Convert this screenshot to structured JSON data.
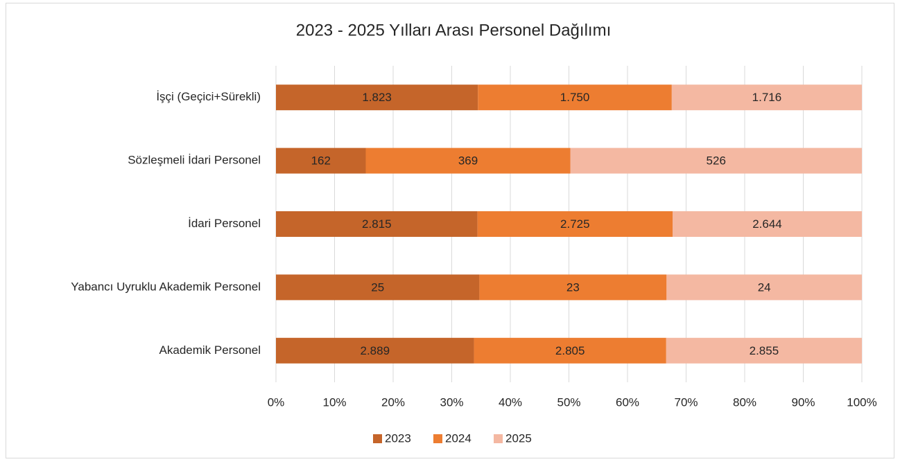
{
  "chart_data": {
    "type": "bar100h",
    "title": "2023 - 2025 Yılları Arası Personel Dağılımı",
    "categories": [
      "İşçi (Geçici+Sürekli)",
      "Sözleşmeli İdari Personel",
      "İdari Personel",
      "Yabancı Uyruklu Akademik Personel",
      "Akademik Personel"
    ],
    "series": [
      {
        "name": "2023",
        "color": "#c5652a",
        "values": [
          1823,
          162,
          2815,
          25,
          2889
        ],
        "value_labels": [
          "1.823",
          "162",
          "2.815",
          "25",
          "2.889"
        ]
      },
      {
        "name": "2024",
        "color": "#ed7d31",
        "values": [
          1750,
          369,
          2725,
          23,
          2805
        ],
        "value_labels": [
          "1.750",
          "369",
          "2.725",
          "23",
          "2.805"
        ]
      },
      {
        "name": "2025",
        "color": "#f4b8a2",
        "values": [
          1716,
          526,
          2644,
          24,
          2855
        ],
        "value_labels": [
          "1.716",
          "526",
          "2.644",
          "24",
          "2.855"
        ]
      }
    ],
    "xlim": [
      0,
      100
    ],
    "xticks": [
      {
        "value": 0,
        "label": "0%"
      },
      {
        "value": 10,
        "label": "10%"
      },
      {
        "value": 20,
        "label": "20%"
      },
      {
        "value": 30,
        "label": "30%"
      },
      {
        "value": 40,
        "label": "40%"
      },
      {
        "value": 50,
        "label": "50%"
      },
      {
        "value": 60,
        "label": "60%"
      },
      {
        "value": 70,
        "label": "70%"
      },
      {
        "value": 80,
        "label": "80%"
      },
      {
        "value": 90,
        "label": "90%"
      },
      {
        "value": 100,
        "label": "100%"
      }
    ],
    "grid": true,
    "legend": "bottom"
  }
}
